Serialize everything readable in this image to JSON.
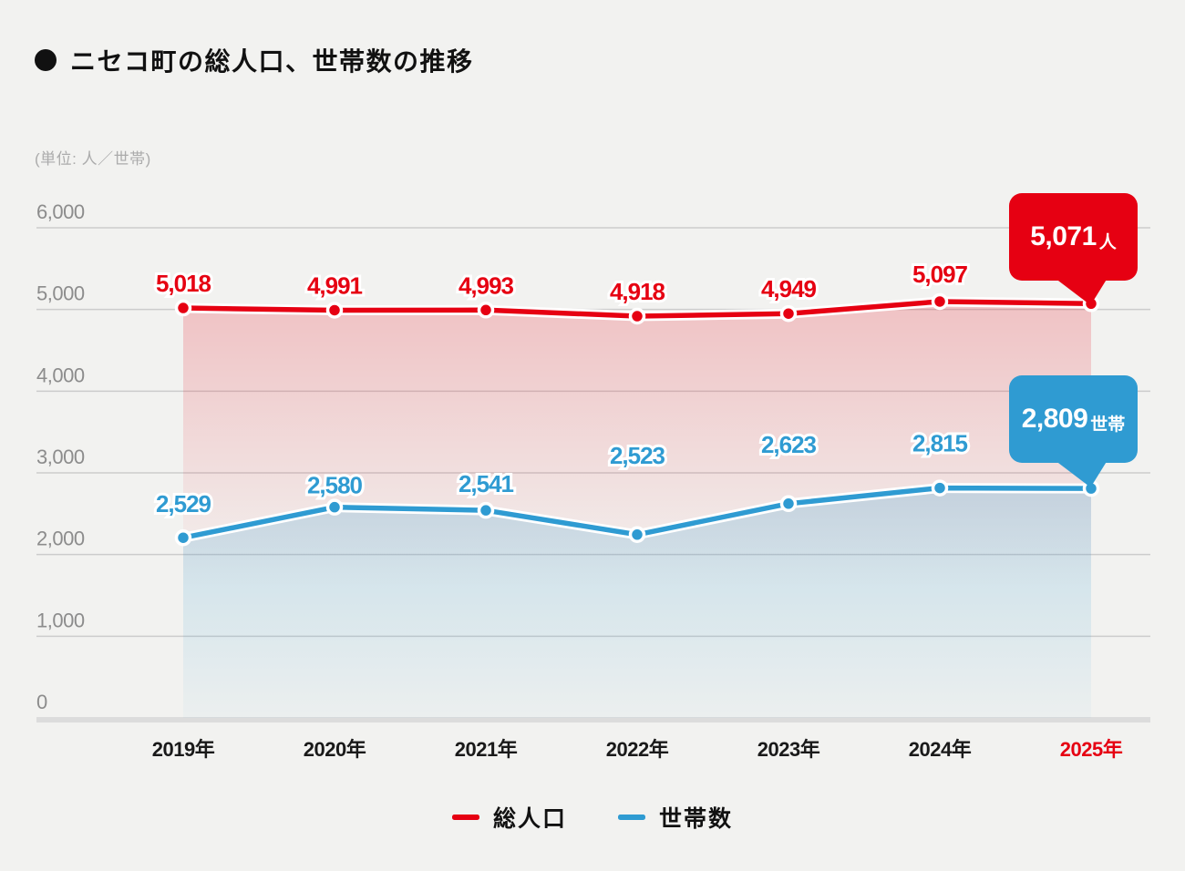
{
  "title": "ニセコ町の総人口、世帯数の推移",
  "unit_label": "(単位: 人／世帯)",
  "colors": {
    "population": "#E60012",
    "households": "#2F9BD2",
    "background": "#F2F2F0",
    "grid": "#CCCCCC",
    "axis_bar": "#DCDCDC",
    "y_label": "#8C8C8C",
    "x_label": "#1A1A1A",
    "x_label_highlight": "#E60012",
    "unit_label": "#ABABAB"
  },
  "chart_data": {
    "type": "line",
    "categories": [
      "2019年",
      "2020年",
      "2021年",
      "2022年",
      "2023年",
      "2024年",
      "2025年"
    ],
    "series": [
      {
        "name": "総人口",
        "color": "#E60012",
        "values": [
          5018,
          4991,
          4993,
          4918,
          4949,
          5097,
          5071
        ]
      },
      {
        "name": "世帯数",
        "color": "#2F9BD2",
        "values": [
          2529,
          2580,
          2541,
          2523,
          2623,
          2815,
          2809
        ]
      }
    ],
    "title": "ニセコ町の総人口、世帯数の推移",
    "ylabel": "(単位: 人／世帯)",
    "ylim": [
      0,
      6000
    ],
    "yticks": [
      0,
      1000,
      2000,
      3000,
      4000,
      5000,
      6000
    ],
    "ytick_labels": [
      "0",
      "1,000",
      "2,000",
      "3,000",
      "4,000",
      "5,000",
      "6,000"
    ],
    "grid": true,
    "legend_position": "bottom",
    "highlighted_category": "2025年"
  },
  "callouts": {
    "population": {
      "value": "5,071",
      "suffix": "人"
    },
    "households": {
      "value": "2,809",
      "suffix": "世帯"
    }
  },
  "legend": [
    {
      "label": "総人口",
      "color": "#E60012"
    },
    {
      "label": "世帯数",
      "color": "#2F9BD2"
    }
  ]
}
